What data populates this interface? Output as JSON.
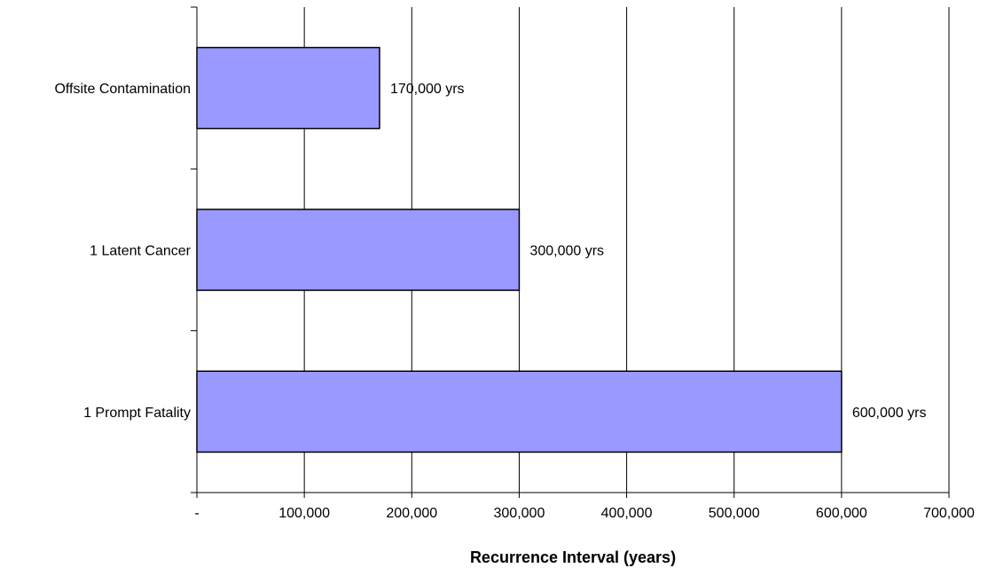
{
  "chart_data": {
    "type": "bar",
    "orientation": "horizontal",
    "categories": [
      "Offsite Contamination",
      "1 Latent Cancer",
      "1 Prompt Fatality"
    ],
    "values": [
      170000,
      300000,
      600000
    ],
    "data_labels": [
      "170,000 yrs",
      "300,000 yrs",
      "600,000 yrs"
    ],
    "xlabel": "Recurrence Interval (years)",
    "ylabel": "",
    "xlim": [
      0,
      700000
    ],
    "x_ticks": [
      0,
      100000,
      200000,
      300000,
      400000,
      500000,
      600000,
      700000
    ],
    "x_tick_labels": [
      "-",
      "100,000",
      "200,000",
      "300,000",
      "400,000",
      "500,000",
      "600,000",
      "700,000"
    ],
    "grid": "vertical",
    "legend": "none",
    "bar_color": "#9999ff"
  }
}
